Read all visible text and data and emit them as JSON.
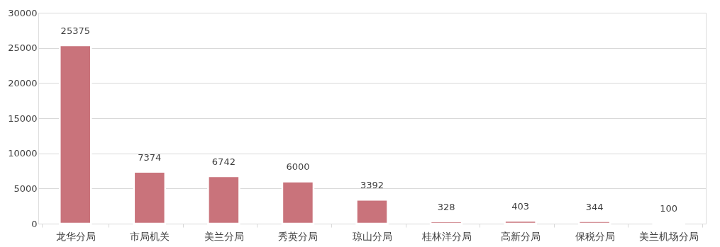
{
  "chart_data": {
    "type": "bar",
    "categories": [
      "龙华分局",
      "市局机关",
      "美兰分局",
      "秀英分局",
      "琼山分局",
      "桂林洋分局",
      "高新分局",
      "保税分局",
      "美兰机场分局"
    ],
    "values": [
      25375,
      7374,
      6742,
      6000,
      3392,
      328,
      403,
      344,
      100
    ],
    "color": "#c9737b",
    "ylim": [
      0,
      30000
    ],
    "yticks": [
      0,
      5000,
      10000,
      15000,
      20000,
      25000,
      30000
    ],
    "grid": "y",
    "data_labels": true
  }
}
